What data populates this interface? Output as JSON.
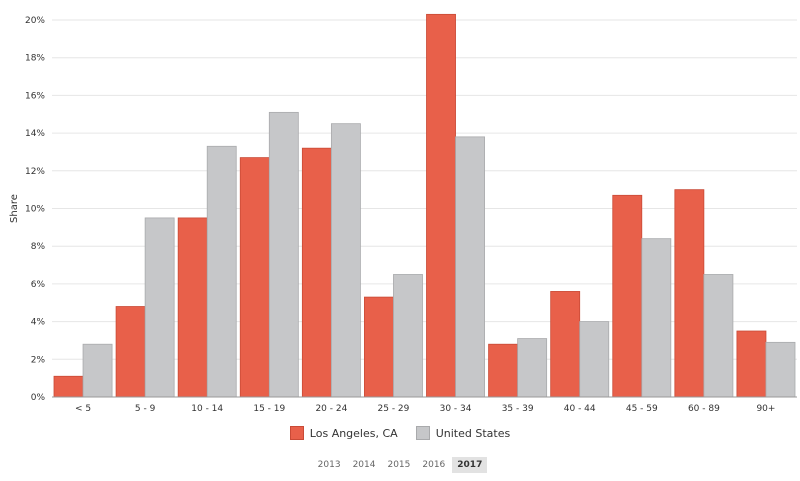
{
  "chart_data": {
    "type": "bar",
    "ylabel": "Share",
    "xlabel": "",
    "title": "",
    "ylim": [
      0,
      20
    ],
    "yticks": [
      "0%",
      "2%",
      "4%",
      "6%",
      "8%",
      "10%",
      "12%",
      "14%",
      "16%",
      "18%",
      "20%"
    ],
    "categories": [
      "< 5",
      "5 - 9",
      "10 - 14",
      "15 - 19",
      "20 - 24",
      "25 - 29",
      "30 - 34",
      "35 - 39",
      "40 - 44",
      "45 - 59",
      "60 - 89",
      "90+"
    ],
    "series": [
      {
        "name": "Los Angeles, CA",
        "color": "#e8604a",
        "values": [
          1.1,
          4.8,
          9.5,
          12.7,
          13.2,
          5.3,
          20.3,
          2.8,
          5.6,
          10.7,
          11.0,
          3.5
        ]
      },
      {
        "name": "United States",
        "color": "#c6c7c9",
        "values": [
          2.8,
          9.5,
          13.3,
          15.1,
          14.5,
          6.5,
          13.8,
          3.1,
          4.0,
          8.4,
          6.5,
          2.9
        ]
      }
    ],
    "grid": true,
    "legend_position": "bottom"
  },
  "years": [
    "2013",
    "2014",
    "2015",
    "2016",
    "2017"
  ],
  "selected_year": "2017"
}
